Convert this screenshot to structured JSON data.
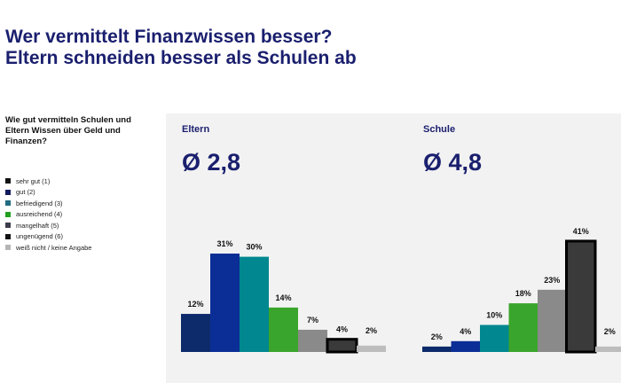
{
  "title": [
    "Wer vermittelt Finanzwissen besser?",
    "Eltern schneiden besser als Schulen ab"
  ],
  "question": "Wie gut vermitteln Schulen und Eltern Wissen über Geld und Finanzen?",
  "chart_data": {
    "type": "bar",
    "categories": [
      "sehr gut (1)",
      "gut (2)",
      "befriedigend (3)",
      "ausreichend (4)",
      "mangelhaft (5)",
      "ungenügend (6)",
      "weiß nicht / keine Angabe"
    ],
    "colors": [
      "#0d2a6b",
      "#0b2e96",
      "#00878f",
      "#3aa52c",
      "#8a8a8a",
      "#3a3a3a",
      "#bdbdbd"
    ],
    "legend_colors": [
      "#111111",
      "#141a5e",
      "#1f6b80",
      "#22a01e",
      "#3c3c4a",
      "#111111",
      "#b5b5b5"
    ],
    "legend_position": "left",
    "panels": [
      {
        "name": "Eltern",
        "average": "Ø 2,8",
        "values": [
          12,
          31,
          30,
          14,
          7,
          4,
          2
        ]
      },
      {
        "name": "Schule",
        "average": "Ø 4,8",
        "values": [
          2,
          4,
          10,
          18,
          23,
          41,
          2
        ]
      }
    ]
  }
}
